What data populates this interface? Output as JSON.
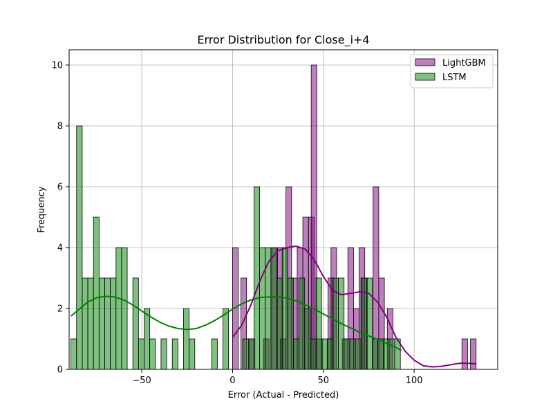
{
  "chart_data": {
    "type": "histogram",
    "title": "Error Distribution for Close_i+4",
    "xlabel": "Error (Actual - Predicted)",
    "ylabel": "Frequency",
    "xlim": [
      -90,
      146
    ],
    "ylim": [
      0,
      10.5
    ],
    "xticks": [
      -50,
      0,
      50,
      100
    ],
    "yticks": [
      0,
      2,
      4,
      6,
      8,
      10
    ],
    "grid": true,
    "legend_position": "top-right",
    "bin_width": 3.1,
    "series": [
      {
        "name": "LightGBM",
        "color": "#800080",
        "bins": [
          {
            "x0": 0.0,
            "count": 4
          },
          {
            "x0": 4.6,
            "count": 3
          },
          {
            "x0": 9.2,
            "count": 1
          },
          {
            "x0": 17.0,
            "count": 1
          },
          {
            "x0": 21.6,
            "count": 4
          },
          {
            "x0": 24.7,
            "count": 4
          },
          {
            "x0": 26.3,
            "count": 1
          },
          {
            "x0": 29.4,
            "count": 6
          },
          {
            "x0": 32.5,
            "count": 3
          },
          {
            "x0": 35.6,
            "count": 4
          },
          {
            "x0": 38.7,
            "count": 5
          },
          {
            "x0": 41.8,
            "count": 5
          },
          {
            "x0": 43.3,
            "count": 10
          },
          {
            "x0": 46.4,
            "count": 1
          },
          {
            "x0": 52.6,
            "count": 3
          },
          {
            "x0": 54.2,
            "count": 4
          },
          {
            "x0": 60.4,
            "count": 1
          },
          {
            "x0": 63.5,
            "count": 4
          },
          {
            "x0": 66.6,
            "count": 2
          },
          {
            "x0": 69.7,
            "count": 4
          },
          {
            "x0": 71.2,
            "count": 3
          },
          {
            "x0": 77.4,
            "count": 6
          },
          {
            "x0": 80.5,
            "count": 3
          },
          {
            "x0": 85.2,
            "count": 2
          },
          {
            "x0": 126.3,
            "count": 1
          },
          {
            "x0": 131.0,
            "count": 1
          }
        ],
        "kde": [
          [
            0,
            1.05
          ],
          [
            5,
            1.45
          ],
          [
            10,
            2.1
          ],
          [
            15,
            2.9
          ],
          [
            20,
            3.55
          ],
          [
            25,
            3.9
          ],
          [
            30,
            4.0
          ],
          [
            35,
            4.05
          ],
          [
            40,
            3.95
          ],
          [
            45,
            3.6
          ],
          [
            50,
            3.05
          ],
          [
            55,
            2.6
          ],
          [
            60,
            2.45
          ],
          [
            65,
            2.5
          ],
          [
            70,
            2.55
          ],
          [
            75,
            2.5
          ],
          [
            80,
            2.2
          ],
          [
            85,
            1.7
          ],
          [
            90,
            1.05
          ],
          [
            95,
            0.6
          ],
          [
            100,
            0.3
          ],
          [
            105,
            0.12
          ],
          [
            110,
            0.08
          ],
          [
            115,
            0.1
          ],
          [
            120,
            0.15
          ],
          [
            125,
            0.2
          ],
          [
            130,
            0.2
          ],
          [
            134,
            0.18
          ]
        ]
      },
      {
        "name": "LSTM",
        "color": "#008000",
        "bins": [
          {
            "x0": -89.0,
            "count": 1
          },
          {
            "x0": -85.9,
            "count": 8
          },
          {
            "x0": -82.8,
            "count": 3
          },
          {
            "x0": -79.7,
            "count": 3
          },
          {
            "x0": -76.6,
            "count": 5
          },
          {
            "x0": -73.5,
            "count": 3
          },
          {
            "x0": -70.4,
            "count": 3
          },
          {
            "x0": -67.3,
            "count": 3
          },
          {
            "x0": -64.2,
            "count": 4
          },
          {
            "x0": -61.1,
            "count": 4
          },
          {
            "x0": -54.9,
            "count": 3
          },
          {
            "x0": -51.8,
            "count": 1
          },
          {
            "x0": -48.7,
            "count": 2
          },
          {
            "x0": -45.6,
            "count": 1
          },
          {
            "x0": -39.4,
            "count": 1
          },
          {
            "x0": -33.2,
            "count": 1
          },
          {
            "x0": -27.0,
            "count": 2
          },
          {
            "x0": -23.9,
            "count": 1
          },
          {
            "x0": -11.5,
            "count": 1
          },
          {
            "x0": -5.3,
            "count": 2
          },
          {
            "x0": 5.6,
            "count": 1
          },
          {
            "x0": 8.7,
            "count": 1
          },
          {
            "x0": 11.8,
            "count": 6
          },
          {
            "x0": 14.9,
            "count": 4
          },
          {
            "x0": 18.0,
            "count": 4
          },
          {
            "x0": 21.1,
            "count": 4
          },
          {
            "x0": 24.2,
            "count": 3
          },
          {
            "x0": 27.3,
            "count": 4
          },
          {
            "x0": 30.4,
            "count": 3
          },
          {
            "x0": 33.5,
            "count": 1
          },
          {
            "x0": 36.6,
            "count": 3
          },
          {
            "x0": 39.7,
            "count": 2
          },
          {
            "x0": 42.8,
            "count": 1
          },
          {
            "x0": 45.9,
            "count": 3
          },
          {
            "x0": 49.0,
            "count": 1
          },
          {
            "x0": 52.1,
            "count": 1
          },
          {
            "x0": 55.2,
            "count": 3
          },
          {
            "x0": 58.3,
            "count": 3
          },
          {
            "x0": 61.4,
            "count": 1
          },
          {
            "x0": 64.5,
            "count": 1
          },
          {
            "x0": 67.6,
            "count": 1
          },
          {
            "x0": 70.7,
            "count": 3
          },
          {
            "x0": 73.8,
            "count": 3
          },
          {
            "x0": 76.9,
            "count": 1
          },
          {
            "x0": 80.0,
            "count": 1
          },
          {
            "x0": 83.1,
            "count": 1
          },
          {
            "x0": 86.2,
            "count": 1
          },
          {
            "x0": 89.3,
            "count": 1
          }
        ],
        "kde": [
          [
            -89,
            1.75
          ],
          [
            -85,
            1.95
          ],
          [
            -80,
            2.2
          ],
          [
            -75,
            2.35
          ],
          [
            -70,
            2.4
          ],
          [
            -65,
            2.38
          ],
          [
            -60,
            2.28
          ],
          [
            -55,
            2.12
          ],
          [
            -50,
            1.92
          ],
          [
            -45,
            1.72
          ],
          [
            -40,
            1.55
          ],
          [
            -35,
            1.42
          ],
          [
            -30,
            1.34
          ],
          [
            -25,
            1.31
          ],
          [
            -20,
            1.34
          ],
          [
            -15,
            1.45
          ],
          [
            -10,
            1.6
          ],
          [
            -5,
            1.78
          ],
          [
            0,
            1.98
          ],
          [
            5,
            2.15
          ],
          [
            10,
            2.28
          ],
          [
            15,
            2.36
          ],
          [
            20,
            2.38
          ],
          [
            25,
            2.38
          ],
          [
            30,
            2.34
          ],
          [
            35,
            2.25
          ],
          [
            40,
            2.12
          ],
          [
            45,
            1.98
          ],
          [
            50,
            1.82
          ],
          [
            55,
            1.66
          ],
          [
            60,
            1.5
          ],
          [
            65,
            1.36
          ],
          [
            70,
            1.22
          ],
          [
            75,
            1.1
          ],
          [
            80,
            0.98
          ],
          [
            85,
            0.85
          ],
          [
            90,
            0.72
          ],
          [
            93,
            0.62
          ]
        ]
      }
    ]
  }
}
